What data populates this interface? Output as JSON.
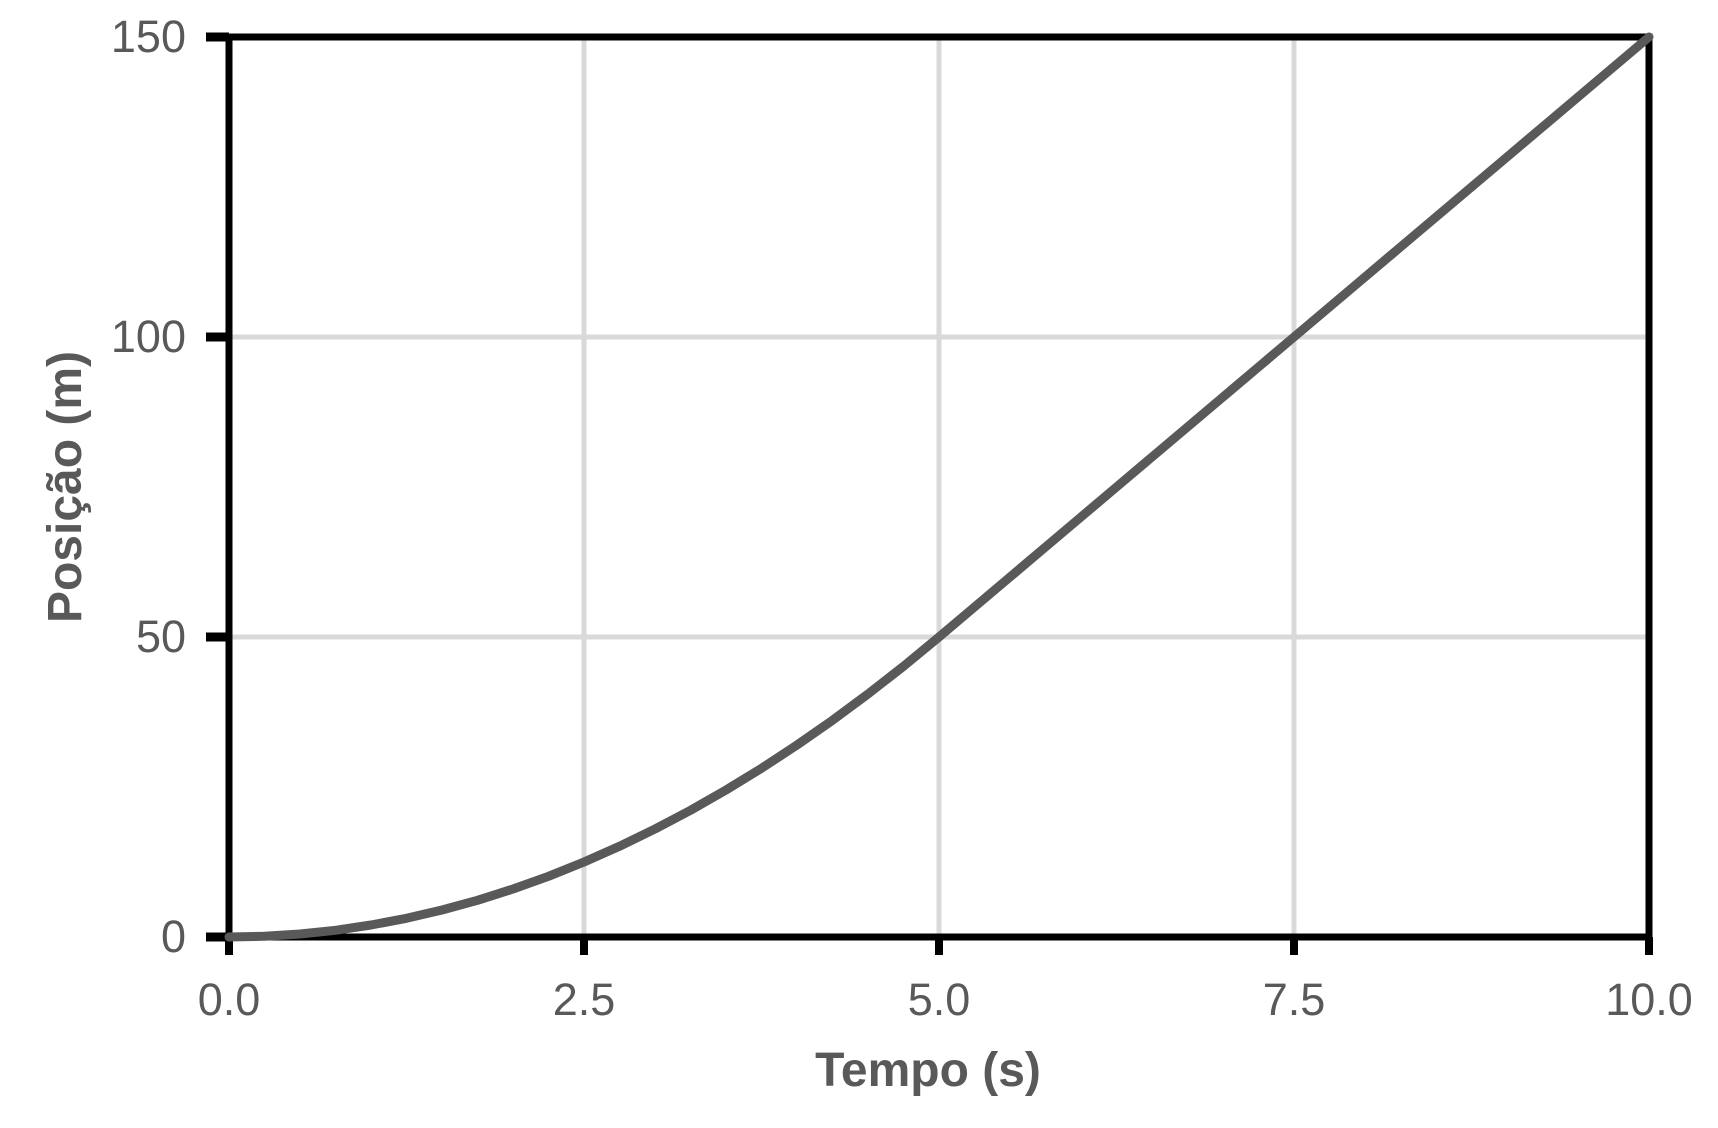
{
  "chart_data": {
    "type": "line",
    "title": "",
    "xlabel": "Tempo (s)",
    "ylabel": "Posição (m)",
    "xlim": [
      0,
      10
    ],
    "ylim": [
      0,
      150
    ],
    "grid": true,
    "legend": false,
    "xticks": {
      "values": [
        0,
        2.5,
        5,
        7.5,
        10
      ],
      "labels": [
        "0.0",
        "2.5",
        "5.0",
        "7.5",
        "10.0"
      ]
    },
    "yticks": {
      "values": [
        0,
        50,
        100,
        150
      ],
      "labels": [
        "0",
        "50",
        "100",
        "150"
      ]
    },
    "series": [
      {
        "name": "position",
        "color": "#595959",
        "line_width": 9,
        "x": [
          0,
          0.25,
          0.5,
          0.75,
          1,
          1.25,
          1.5,
          1.75,
          2,
          2.25,
          2.5,
          2.75,
          3,
          3.25,
          3.5,
          3.75,
          4,
          4.25,
          4.5,
          4.75,
          5,
          5.25,
          5.5,
          5.75,
          6,
          6.25,
          6.5,
          6.75,
          7,
          7.25,
          7.5,
          7.75,
          8,
          8.25,
          8.5,
          8.75,
          9,
          9.25,
          9.5,
          9.75,
          10
        ],
        "y": [
          0,
          0.125,
          0.5,
          1.125,
          2,
          3.125,
          4.5,
          6.125,
          8,
          10.125,
          12.5,
          15.125,
          18,
          21.125,
          24.5,
          28.125,
          32,
          36.125,
          40.5,
          45.125,
          50,
          55,
          60,
          65,
          70,
          75,
          80,
          85,
          90,
          95,
          100,
          105,
          110,
          115,
          120,
          125,
          130,
          135,
          140,
          145,
          150
        ]
      }
    ],
    "colors": {
      "axis": "#000000",
      "grid": "#d9d9d9",
      "text": "#595959",
      "background": "#ffffff"
    }
  }
}
